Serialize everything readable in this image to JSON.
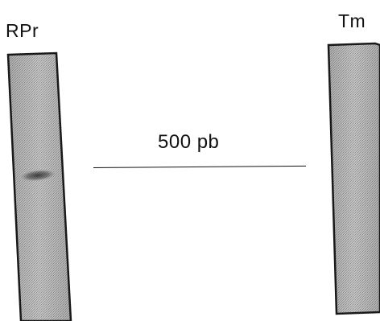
{
  "lanes": [
    {
      "label": "RPr",
      "band": "present"
    },
    {
      "label": "Tm",
      "band": "absent"
    }
  ],
  "marker": {
    "label": "500 pb"
  },
  "colors": {
    "lane_fill": "#b9b9b9",
    "lane_border": "#1a1a1a",
    "band": "#404040",
    "background": "#ffffff"
  }
}
